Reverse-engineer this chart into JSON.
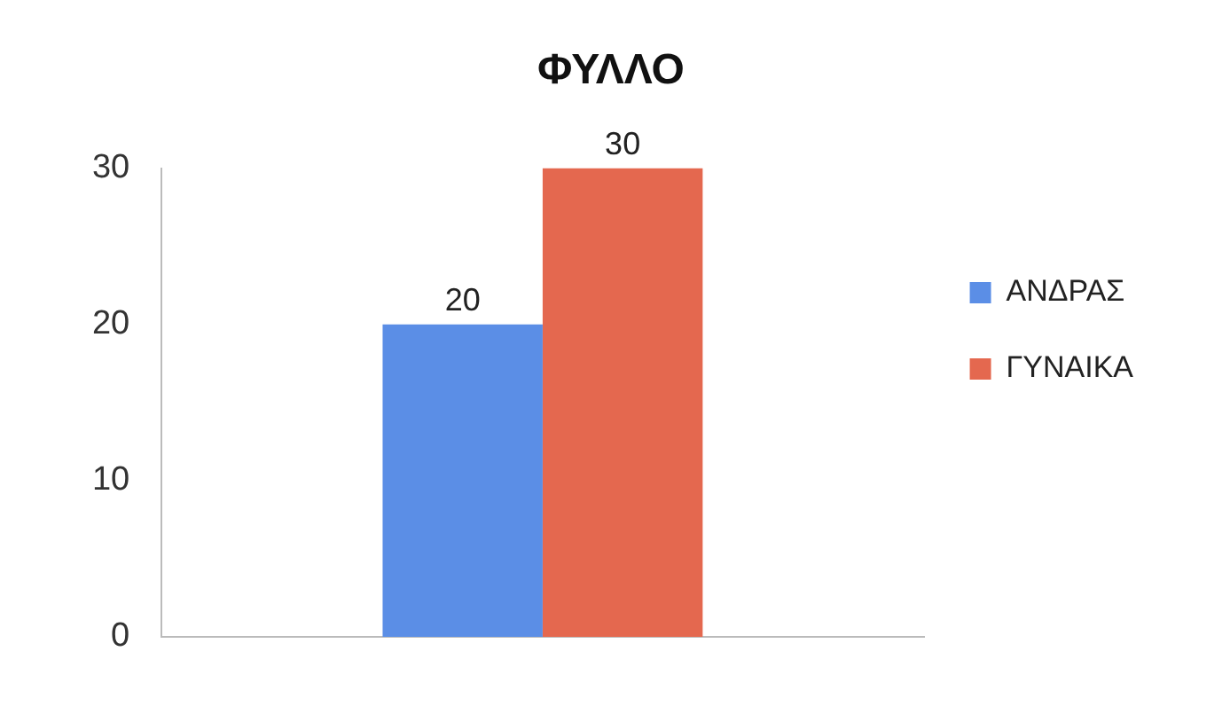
{
  "chart_data": {
    "type": "bar",
    "title": "ΦΥΛΛΟ",
    "categories": [
      null
    ],
    "series": [
      {
        "name": "ΑΝΔΡΑΣ",
        "color": "#5b8ee6",
        "values": [
          20
        ]
      },
      {
        "name": "ΓΥΝΑΙΚΑ",
        "color": "#e4684f",
        "values": [
          30
        ]
      }
    ],
    "ylim": [
      0,
      30
    ],
    "yticks": [
      0,
      10,
      20,
      30
    ],
    "data_labels": true,
    "legend": "right"
  }
}
